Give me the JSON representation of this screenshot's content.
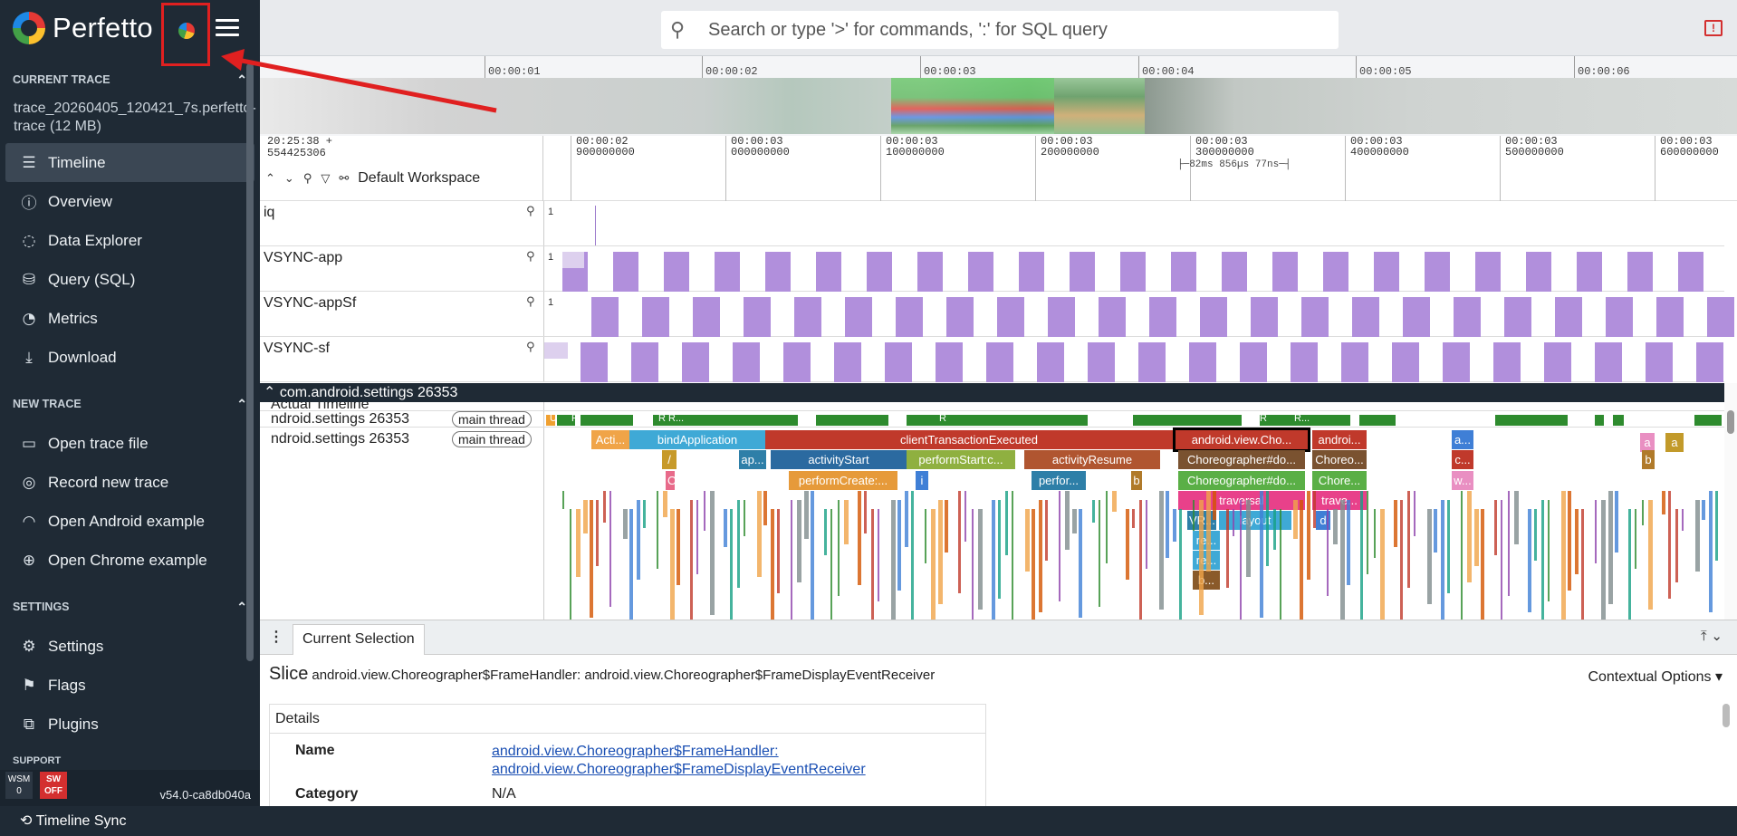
{
  "app": {
    "name": "Perfetto"
  },
  "sidebar": {
    "current_trace_header": "CURRENT TRACE",
    "trace_file": "trace_20260405_120421_7s.perfetto-trace (12 MB)",
    "nav_items": [
      {
        "label": "Timeline",
        "icon": "timeline-icon",
        "glyph": "☰",
        "active": true
      },
      {
        "label": "Overview",
        "icon": "info-icon",
        "glyph": "ⓘ"
      },
      {
        "label": "Data Explorer",
        "icon": "explore-icon",
        "glyph": "◌"
      },
      {
        "label": "Query (SQL)",
        "icon": "database-icon",
        "glyph": "⛁"
      },
      {
        "label": "Metrics",
        "icon": "speed-icon",
        "glyph": "◔"
      },
      {
        "label": "Download",
        "icon": "download-icon",
        "glyph": "⤓"
      }
    ],
    "new_trace_header": "NEW TRACE",
    "new_trace_items": [
      {
        "label": "Open trace file",
        "icon": "folder-icon",
        "glyph": "▭"
      },
      {
        "label": "Record new trace",
        "icon": "record-icon",
        "glyph": "◎"
      },
      {
        "label": "Open Android example",
        "icon": "android-icon",
        "glyph": "◠"
      },
      {
        "label": "Open Chrome example",
        "icon": "globe-icon",
        "glyph": "⊕"
      }
    ],
    "settings_header": "SETTINGS",
    "settings_items": [
      {
        "label": "Settings",
        "icon": "gear-icon",
        "glyph": "⚙"
      },
      {
        "label": "Flags",
        "icon": "flag-icon",
        "glyph": "⚑"
      },
      {
        "label": "Plugins",
        "icon": "extension-icon",
        "glyph": "⧉"
      }
    ],
    "support_header": "SUPPORT",
    "footer": {
      "wsm_label": "WSM",
      "wsm_value": "0",
      "sw_label": "SW",
      "sw_value": "OFF",
      "version": "v54.0-ca8db040a"
    }
  },
  "search": {
    "placeholder": "Search or type '>' for commands, ':' for SQL query"
  },
  "overview": {
    "ticks": [
      "00:00:01",
      "00:00:02",
      "00:00:03",
      "00:00:04",
      "00:00:05",
      "00:00:06"
    ]
  },
  "timeline_header": {
    "start_time": "20:25:38 +",
    "start_ns": "554425306",
    "workspace": "Default Workspace",
    "ticks": [
      {
        "t": "00:00:02",
        "ns": "900000000"
      },
      {
        "t": "00:00:03",
        "ns": "000000000"
      },
      {
        "t": "00:00:03",
        "ns": "100000000"
      },
      {
        "t": "00:00:03",
        "ns": "200000000"
      },
      {
        "t": "00:00:03",
        "ns": "300000000"
      },
      {
        "t": "00:00:03",
        "ns": "400000000"
      },
      {
        "t": "00:00:03",
        "ns": "500000000"
      },
      {
        "t": "00:00:03",
        "ns": "600000000"
      }
    ],
    "duration_label": "82ms 856µs 77ns"
  },
  "tracks": {
    "pinned": [
      {
        "name": "iq",
        "value": "1"
      },
      {
        "name": "VSYNC-app",
        "value": "1"
      },
      {
        "name": "VSYNC-appSf",
        "value": "1"
      },
      {
        "name": "VSYNC-sf",
        "value": "1"
      }
    ],
    "process": {
      "name": "com.android.settings 26353",
      "actual_timeline": "Actual Timeline",
      "thread_name": "ndroid.settings 26353",
      "thread_pill": "main thread"
    },
    "slices_row1": [
      "Acti...",
      "bindApplication",
      "clientTransactionExecuted",
      "android.view.Cho...",
      "androi...",
      "a...",
      "a",
      "a"
    ],
    "slices_row2": [
      "/",
      "ap...",
      "activityStart",
      "performStart:c...",
      "activityResume",
      "Choreographer#do...",
      "Choreo...",
      "c...",
      "b"
    ],
    "slices_row3": [
      "O",
      "performCreate:...",
      "i",
      "perfor...",
      "b",
      "Choreographer#do...",
      "Chore...",
      "w..."
    ],
    "slices_row4": [
      "traversal",
      "trave..."
    ],
    "slices_row5": [
      "VR...",
      "layout",
      "d"
    ],
    "slices_small": [
      "re...",
      "re...",
      "b..."
    ],
    "state_labels": [
      "U",
      "R",
      "R R...",
      "R",
      "R",
      "R..."
    ]
  },
  "details": {
    "tab": "Current Selection",
    "slice_kind": "Slice",
    "slice_name": "android.view.Choreographer$FrameHandler: android.view.Choreographer$FrameDisplayEventReceiver",
    "contextual": "Contextual Options ▾",
    "card_title": "Details",
    "name_key": "Name",
    "name_val_1": "android.view.Choreographer$FrameHandler:",
    "name_val_2": "android.view.Choreographer$FrameDisplayEventReceiver",
    "category_key": "Category",
    "category_val": "N/A"
  },
  "statusbar": {
    "label": "Timeline Sync"
  }
}
